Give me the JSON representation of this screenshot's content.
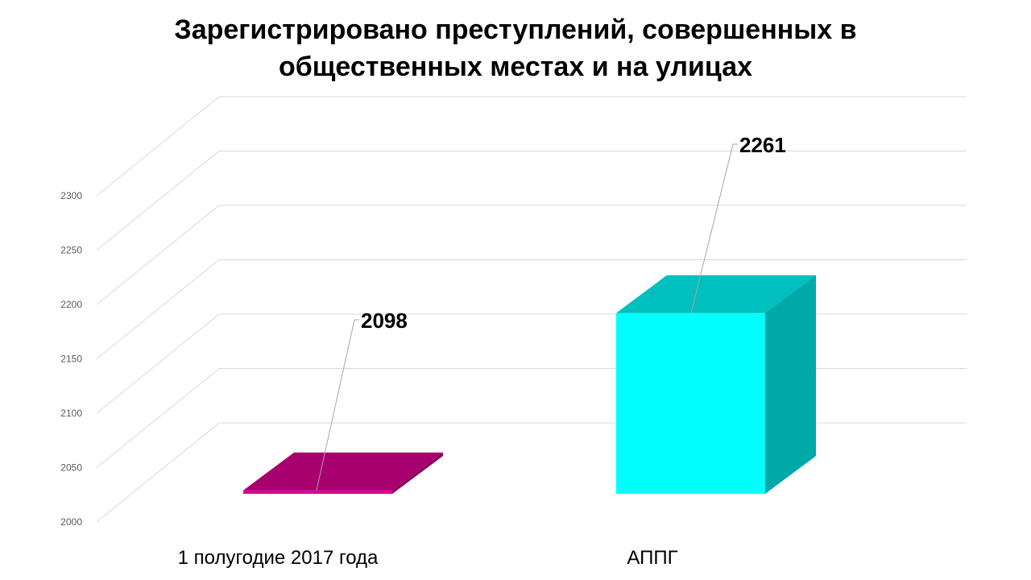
{
  "chart_data": {
    "type": "bar",
    "title_lines": [
      "Зарегистрировано  преступлений, совершенных в",
      "общественных местах и на улицах"
    ],
    "categories": [
      "1 полугодие 2017 года",
      "АППГ"
    ],
    "values": [
      2098,
      2261
    ],
    "ylim": [
      2000,
      2300
    ],
    "yticks": [
      "2000",
      "2050",
      "2100",
      "2150",
      "2200",
      "2250",
      "2300"
    ],
    "grid": true,
    "style": "3d-columns",
    "colors": {
      "front": [
        "#DC0096",
        "#00FFFF"
      ],
      "top": [
        "#A8006F",
        "#00BFBF"
      ],
      "side": [
        "#8B005E",
        "#00A8A8"
      ],
      "grid": "#D9D9D9"
    }
  }
}
